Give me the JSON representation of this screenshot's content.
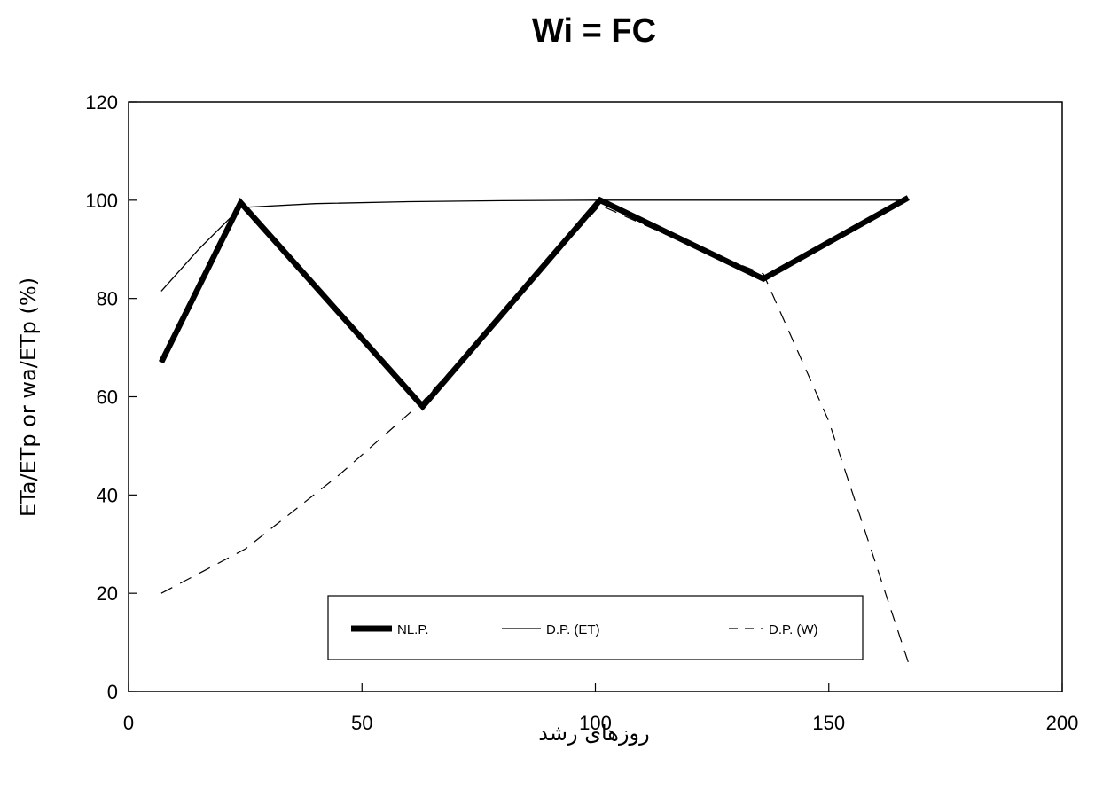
{
  "chart_data": {
    "type": "line",
    "title": "Wi = FC",
    "xlabel": "روزهای رشد",
    "ylabel": "ETa/ETp or wa/ETp (%)",
    "xlim": [
      0,
      200
    ],
    "ylim": [
      0,
      120
    ],
    "x_ticks": [
      "0",
      "50",
      "100",
      "150",
      "200"
    ],
    "y_ticks": [
      "0",
      "20",
      "40",
      "60",
      "80",
      "100",
      "120"
    ],
    "grid": false,
    "legend_position": "bottom-center",
    "series": [
      {
        "name": "NL.P.",
        "style": "thick-solid",
        "color": "#000000",
        "x": [
          7,
          24,
          63,
          101,
          136,
          167
        ],
        "y": [
          67,
          99.5,
          58,
          100,
          84,
          100.5
        ]
      },
      {
        "name": "D.P. (ET)",
        "style": "thin-solid",
        "color": "#000000",
        "x": [
          7,
          15,
          24,
          40,
          60,
          80,
          101,
          120,
          136,
          150,
          167
        ],
        "y": [
          81.5,
          90,
          98.5,
          99.3,
          99.7,
          99.9,
          100,
          100,
          100,
          100,
          100
        ]
      },
      {
        "name": "D.P. (W)",
        "style": "dashed",
        "color": "#000000",
        "x": [
          7,
          25,
          45,
          63,
          82,
          101,
          120,
          136,
          150,
          167
        ],
        "y": [
          20,
          29,
          44,
          59,
          79,
          99,
          91,
          85,
          55,
          6
        ]
      }
    ]
  }
}
